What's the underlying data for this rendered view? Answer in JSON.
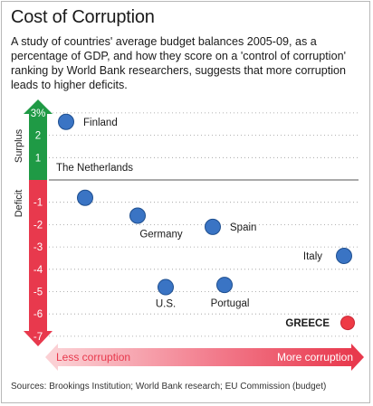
{
  "title": "Cost of Corruption",
  "subtitle": "A study of countries' average budget balances 2005-09, as a percentage of GDP, and how they score on a 'control of corruption' ranking by World Bank researchers, suggests that more corruption leads to higher deficits.",
  "source": "Sources: Brookings Institution; World Bank research; EU Commission (budget)",
  "colors": {
    "surplus": "#1f9a45",
    "deficit": "#e8394d",
    "dot": "#3a74c4",
    "greece_dot": "#ee3a45",
    "gradient_light": "#fbd0d4"
  },
  "chart_data": {
    "type": "scatter",
    "title": "Cost of Corruption",
    "ylabel_top": "Surplus",
    "ylabel_bottom": "Deficit",
    "xlabel_left": "Less corruption",
    "xlabel_right": "More corruption",
    "y_tick_labels": [
      "3%",
      "2",
      "1",
      "-1",
      "-2",
      "-3",
      "-4",
      "-5",
      "-6",
      "-7"
    ],
    "ylim": [
      -7,
      3
    ],
    "x_axis": "corruption ranking (unlabeled scale)",
    "grid": "dotted horizontal",
    "points": [
      {
        "label": "Finland",
        "y": 2.6
      },
      {
        "label": "The Netherlands",
        "y": -0.8
      },
      {
        "label": "Germany",
        "y": -1.6
      },
      {
        "label": "U.S.",
        "y": -4.8
      },
      {
        "label": "Portugal",
        "y": -4.7
      },
      {
        "label": "Spain",
        "y": -2.1
      },
      {
        "label": "Italy",
        "y": -3.4
      },
      {
        "label": "GREECE",
        "y": -6.4
      }
    ]
  }
}
